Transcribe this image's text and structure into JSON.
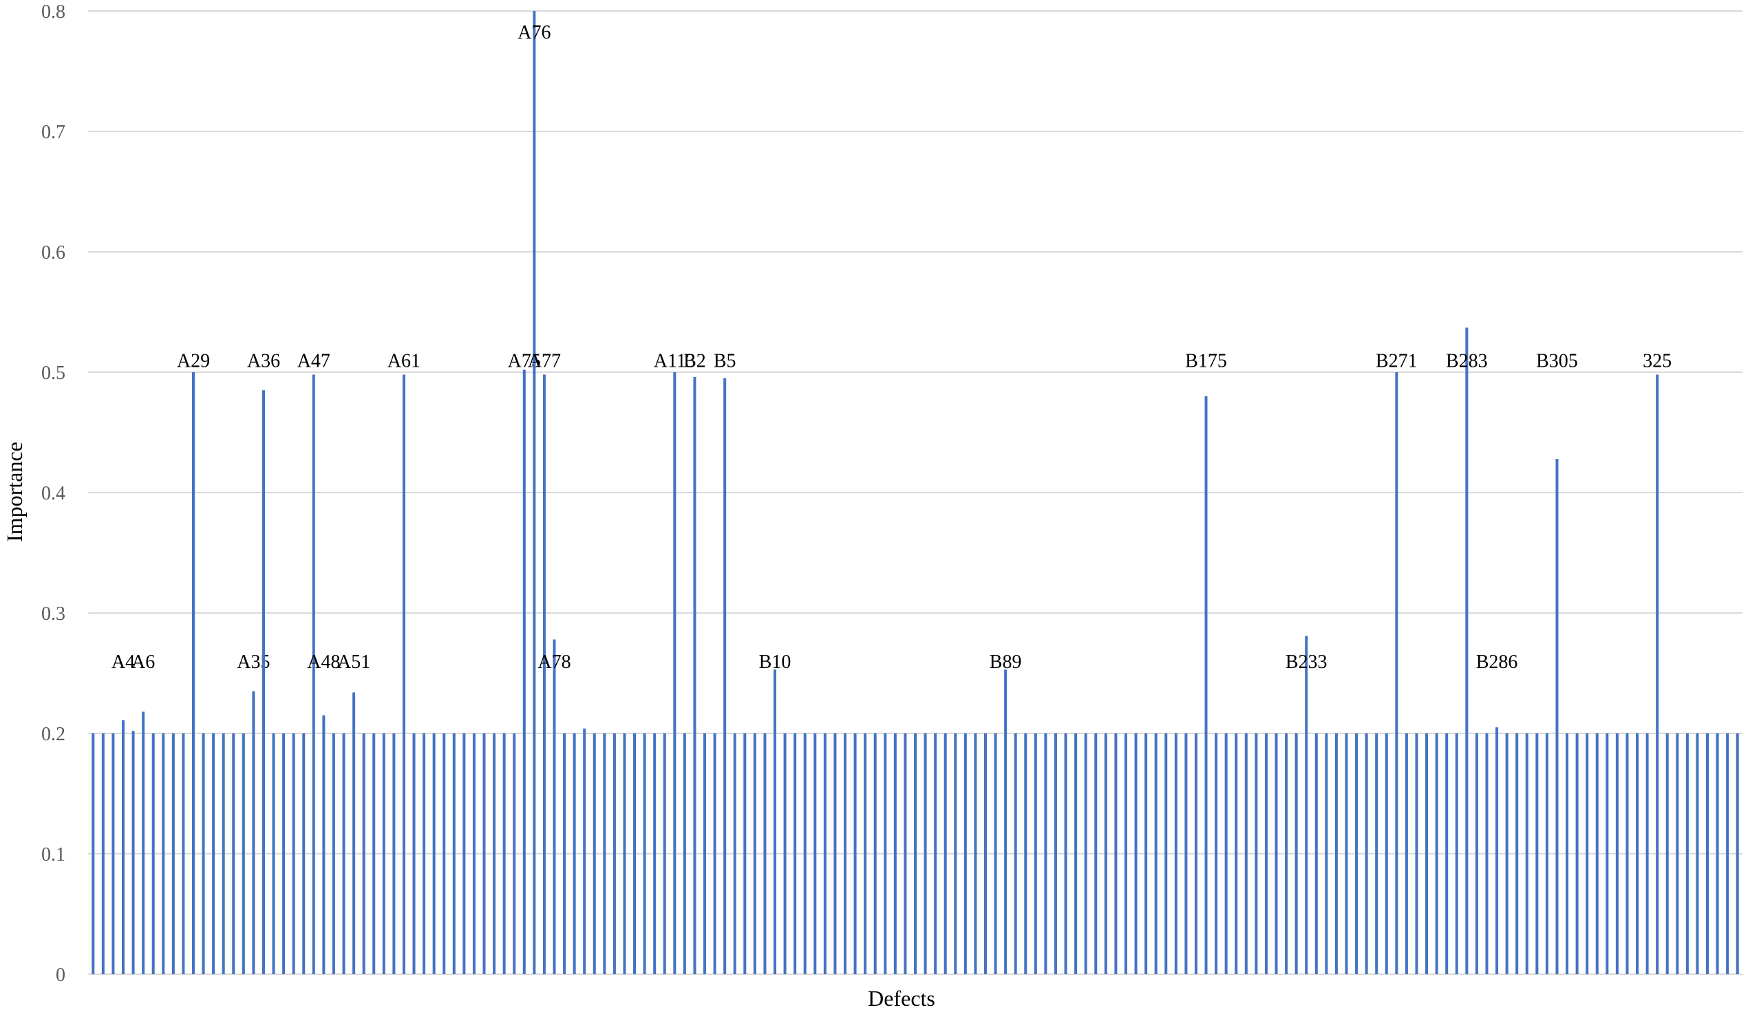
{
  "chart_data": {
    "type": "bar",
    "x_label": "Defects",
    "y_label": "Importance",
    "color": "#4472c4",
    "grid": true,
    "ylim": [
      0,
      0.8
    ],
    "yticks": [
      0,
      0.1,
      0.2,
      0.3,
      0.4,
      0.5,
      0.6,
      0.7,
      0.8
    ],
    "categories": [
      null,
      null,
      null,
      "A4",
      null,
      "A6",
      null,
      null,
      null,
      null,
      "A29",
      null,
      null,
      null,
      null,
      null,
      "A35",
      "A36",
      null,
      null,
      null,
      null,
      "A47",
      "A48",
      null,
      null,
      "A51",
      null,
      null,
      null,
      null,
      "A61",
      null,
      null,
      null,
      null,
      null,
      null,
      null,
      null,
      null,
      null,
      null,
      "A75",
      "A76",
      "A77",
      "A78",
      null,
      null,
      null,
      null,
      null,
      null,
      null,
      null,
      null,
      null,
      null,
      "A113",
      null,
      "B2",
      null,
      null,
      "B5",
      null,
      null,
      null,
      null,
      "B10",
      null,
      null,
      null,
      null,
      null,
      null,
      null,
      null,
      null,
      null,
      null,
      null,
      null,
      null,
      null,
      null,
      null,
      null,
      null,
      null,
      null,
      null,
      "B89",
      null,
      null,
      null,
      null,
      null,
      null,
      null,
      null,
      null,
      null,
      null,
      null,
      null,
      null,
      null,
      null,
      null,
      null,
      null,
      "B175",
      null,
      null,
      null,
      null,
      null,
      null,
      null,
      null,
      null,
      "B233",
      null,
      null,
      null,
      null,
      null,
      null,
      null,
      null,
      "B271",
      null,
      null,
      null,
      null,
      null,
      null,
      "B283",
      null,
      null,
      "B286",
      null,
      null,
      null,
      null,
      null,
      "B305",
      null,
      null,
      null,
      null,
      null,
      null,
      null,
      null,
      null,
      "325",
      null,
      null,
      null,
      null,
      null,
      null,
      null,
      null
    ],
    "values": [
      0.2,
      0.2,
      0.2,
      0.211,
      0.202,
      0.218,
      0.2,
      0.2,
      0.2,
      0.2,
      0.5,
      0.2,
      0.2,
      0.2,
      0.2,
      0.2,
      0.235,
      0.485,
      0.2,
      0.2,
      0.2,
      0.2,
      0.498,
      0.215,
      0.2,
      0.2,
      0.234,
      0.2,
      0.2,
      0.2,
      0.2,
      0.498,
      0.2,
      0.2,
      0.2,
      0.2,
      0.2,
      0.2,
      0.2,
      0.2,
      0.2,
      0.2,
      0.2,
      0.502,
      0.8,
      0.498,
      0.278,
      0.2,
      0.2,
      0.204,
      0.2,
      0.2,
      0.2,
      0.2,
      0.2,
      0.2,
      0.2,
      0.2,
      0.5,
      0.2,
      0.496,
      0.2,
      0.2,
      0.495,
      0.2,
      0.2,
      0.2,
      0.2,
      0.253,
      0.2,
      0.2,
      0.2,
      0.2,
      0.2,
      0.2,
      0.2,
      0.2,
      0.2,
      0.2,
      0.2,
      0.2,
      0.2,
      0.2,
      0.2,
      0.2,
      0.2,
      0.2,
      0.2,
      0.2,
      0.2,
      0.2,
      0.253,
      0.2,
      0.2,
      0.2,
      0.2,
      0.2,
      0.2,
      0.2,
      0.2,
      0.2,
      0.2,
      0.2,
      0.2,
      0.2,
      0.2,
      0.2,
      0.2,
      0.2,
      0.2,
      0.2,
      0.48,
      0.2,
      0.2,
      0.2,
      0.2,
      0.2,
      0.2,
      0.2,
      0.2,
      0.2,
      0.281,
      0.2,
      0.2,
      0.2,
      0.2,
      0.2,
      0.2,
      0.2,
      0.2,
      0.5,
      0.2,
      0.2,
      0.2,
      0.2,
      0.2,
      0.2,
      0.537,
      0.2,
      0.2,
      0.205,
      0.2,
      0.2,
      0.2,
      0.2,
      0.2,
      0.428,
      0.2,
      0.2,
      0.2,
      0.2,
      0.2,
      0.2,
      0.2,
      0.2,
      0.2,
      0.498,
      0.2,
      0.2,
      0.2,
      0.2,
      0.2,
      0.2,
      0.2,
      0.2
    ]
  }
}
